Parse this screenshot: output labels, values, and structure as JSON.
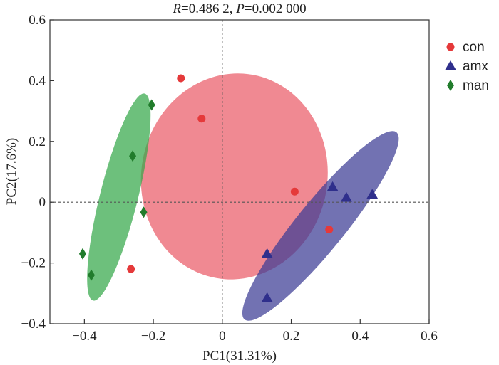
{
  "chart_data": {
    "type": "scatter",
    "title_parts": {
      "r_symbol": "R",
      "r_value": "=0.486 2, ",
      "p_symbol": "P",
      "p_value": "=0.002 000"
    },
    "xlabel": "PC1(31.31%)",
    "ylabel": "PC2(17.6%)",
    "xlim": [
      -0.5,
      0.6
    ],
    "ylim": [
      -0.4,
      0.6
    ],
    "xticks": [
      -0.4,
      -0.2,
      0,
      0.2,
      0.4,
      0.6
    ],
    "xtick_labels": [
      "−0.4",
      "−0.2",
      "0",
      "0.2",
      "0.4",
      "0.6"
    ],
    "yticks": [
      -0.4,
      -0.2,
      0,
      0.2,
      0.4,
      0.6
    ],
    "ytick_labels": [
      "−0.4",
      "−0.2",
      "0",
      "0.2",
      "0.4",
      "0.6"
    ],
    "reference_lines": {
      "x": 0,
      "y": 0
    },
    "legend_position": "right",
    "series": [
      {
        "name": "con",
        "marker": "circle",
        "color": "#e5393a",
        "ellipse_color": "#ea5b68",
        "x": [
          -0.12,
          -0.06,
          0.21,
          0.31,
          -0.265
        ],
        "y": [
          0.408,
          0.275,
          0.035,
          -0.09,
          -0.22
        ],
        "ellipse": {
          "cx": 0.035,
          "cy": 0.085,
          "rx": 0.3,
          "ry": 0.27,
          "angle_deg": 80
        }
      },
      {
        "name": "amx",
        "marker": "triangle",
        "color": "#2f2f8c",
        "ellipse_color": "#3c3c94",
        "x": [
          0.32,
          0.36,
          0.435,
          0.13,
          0.13
        ],
        "y": [
          0.05,
          0.015,
          0.025,
          -0.17,
          -0.315
        ],
        "ellipse": {
          "cx": 0.285,
          "cy": -0.078,
          "rx": 0.35,
          "ry": 0.07,
          "angle_deg": 51
        }
      },
      {
        "name": "man",
        "marker": "diamond",
        "color": "#217c2c",
        "ellipse_color": "#34a84a",
        "x": [
          -0.205,
          -0.26,
          -0.228,
          -0.405,
          -0.38
        ],
        "y": [
          0.32,
          0.152,
          -0.033,
          -0.17,
          -0.24
        ],
        "ellipse": {
          "cx": -0.3,
          "cy": 0.017,
          "rx": 0.31,
          "ry": 0.055,
          "angle_deg": 76
        }
      }
    ]
  }
}
